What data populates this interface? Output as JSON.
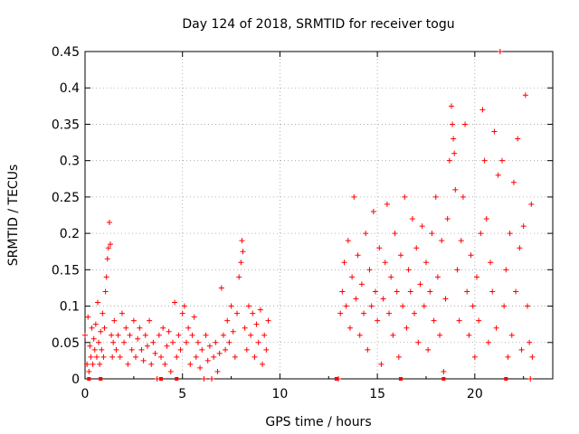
{
  "chart_data": {
    "type": "scatter",
    "title": "Day 124 of 2018, SRMTID for receiver togu",
    "xlabel": "GPS time / hours",
    "ylabel": "SRMTID / TECUs",
    "xlim": [
      0,
      24
    ],
    "ylim": [
      0,
      0.45
    ],
    "xticks": [
      0,
      5,
      10,
      15,
      20
    ],
    "yticks": [
      0,
      0.05,
      0.1,
      0.15,
      0.2,
      0.25,
      0.3,
      0.35,
      0.4,
      0.45
    ],
    "ytick_labels": [
      "0",
      "0.05",
      "0.1",
      "0.15",
      "0.2",
      "0.25",
      "0.3",
      "0.35",
      "0.4",
      "0.45"
    ],
    "grid": true,
    "marker": "+",
    "color": "#ff0000",
    "series": [
      {
        "name": "SRMTID",
        "points": [
          [
            0.0,
            0.06
          ],
          [
            0.1,
            0.02
          ],
          [
            0.15,
            0.085
          ],
          [
            0.2,
            0.01
          ],
          [
            0.25,
            0.045
          ],
          [
            0.3,
            0.03
          ],
          [
            0.35,
            0.07
          ],
          [
            0.4,
            0.02
          ],
          [
            0.45,
            0.055
          ],
          [
            0.5,
            0.04
          ],
          [
            0.55,
            0.075
          ],
          [
            0.6,
            0.03
          ],
          [
            0.65,
            0.105
          ],
          [
            0.7,
            0.05
          ],
          [
            0.75,
            0.02
          ],
          [
            0.8,
            0.065
          ],
          [
            0.85,
            0.04
          ],
          [
            0.9,
            0.09
          ],
          [
            0.95,
            0.03
          ],
          [
            1.0,
            0.07
          ],
          [
            1.05,
            0.12
          ],
          [
            1.1,
            0.14
          ],
          [
            1.15,
            0.165
          ],
          [
            1.2,
            0.18
          ],
          [
            1.25,
            0.215
          ],
          [
            1.3,
            0.185
          ],
          [
            1.35,
            0.06
          ],
          [
            1.4,
            0.03
          ],
          [
            1.45,
            0.05
          ],
          [
            1.5,
            0.08
          ],
          [
            1.6,
            0.04
          ],
          [
            1.7,
            0.06
          ],
          [
            1.8,
            0.03
          ],
          [
            1.9,
            0.09
          ],
          [
            2.0,
            0.05
          ],
          [
            2.1,
            0.07
          ],
          [
            2.2,
            0.02
          ],
          [
            2.3,
            0.06
          ],
          [
            2.4,
            0.04
          ],
          [
            2.5,
            0.08
          ],
          [
            2.6,
            0.03
          ],
          [
            2.7,
            0.055
          ],
          [
            2.8,
            0.07
          ],
          [
            2.9,
            0.04
          ],
          [
            3.0,
            0.025
          ],
          [
            3.1,
            0.06
          ],
          [
            3.2,
            0.045
          ],
          [
            3.3,
            0.08
          ],
          [
            3.4,
            0.02
          ],
          [
            3.5,
            0.05
          ],
          [
            3.6,
            0.035
          ],
          [
            3.7,
            0.0
          ],
          [
            3.8,
            0.06
          ],
          [
            3.9,
            0.03
          ],
          [
            4.0,
            0.07
          ],
          [
            4.1,
            0.02
          ],
          [
            4.2,
            0.045
          ],
          [
            4.3,
            0.065
          ],
          [
            4.4,
            0.01
          ],
          [
            4.5,
            0.05
          ],
          [
            4.6,
            0.105
          ],
          [
            4.7,
            0.03
          ],
          [
            4.8,
            0.06
          ],
          [
            4.9,
            0.04
          ],
          [
            5.0,
            0.09
          ],
          [
            5.1,
            0.1
          ],
          [
            5.2,
            0.05
          ],
          [
            5.3,
            0.07
          ],
          [
            5.4,
            0.02
          ],
          [
            5.5,
            0.06
          ],
          [
            5.6,
            0.085
          ],
          [
            5.7,
            0.03
          ],
          [
            5.8,
            0.05
          ],
          [
            5.9,
            0.015
          ],
          [
            6.0,
            0.04
          ],
          [
            6.1,
            0.0
          ],
          [
            6.2,
            0.06
          ],
          [
            6.3,
            0.025
          ],
          [
            6.4,
            0.045
          ],
          [
            6.5,
            0.0
          ],
          [
            6.6,
            0.03
          ],
          [
            6.7,
            0.05
          ],
          [
            6.8,
            0.01
          ],
          [
            6.9,
            0.035
          ],
          [
            7.0,
            0.125
          ],
          [
            7.1,
            0.06
          ],
          [
            7.2,
            0.04
          ],
          [
            7.3,
            0.08
          ],
          [
            7.4,
            0.05
          ],
          [
            7.5,
            0.1
          ],
          [
            7.6,
            0.065
          ],
          [
            7.7,
            0.03
          ],
          [
            7.8,
            0.09
          ],
          [
            7.9,
            0.14
          ],
          [
            8.0,
            0.16
          ],
          [
            8.05,
            0.19
          ],
          [
            8.1,
            0.175
          ],
          [
            8.2,
            0.07
          ],
          [
            8.3,
            0.04
          ],
          [
            8.4,
            0.1
          ],
          [
            8.5,
            0.06
          ],
          [
            8.6,
            0.09
          ],
          [
            8.7,
            0.03
          ],
          [
            8.8,
            0.075
          ],
          [
            8.9,
            0.05
          ],
          [
            9.0,
            0.095
          ],
          [
            9.1,
            0.02
          ],
          [
            9.2,
            0.06
          ],
          [
            9.3,
            0.04
          ],
          [
            9.4,
            0.08
          ],
          [
            13.0,
            0.0
          ],
          [
            13.1,
            0.09
          ],
          [
            13.2,
            0.12
          ],
          [
            13.3,
            0.16
          ],
          [
            13.4,
            0.1
          ],
          [
            13.5,
            0.19
          ],
          [
            13.6,
            0.07
          ],
          [
            13.7,
            0.14
          ],
          [
            13.8,
            0.25
          ],
          [
            13.9,
            0.11
          ],
          [
            14.0,
            0.17
          ],
          [
            14.1,
            0.06
          ],
          [
            14.2,
            0.13
          ],
          [
            14.3,
            0.09
          ],
          [
            14.4,
            0.2
          ],
          [
            14.5,
            0.04
          ],
          [
            14.6,
            0.15
          ],
          [
            14.7,
            0.1
          ],
          [
            14.8,
            0.23
          ],
          [
            14.9,
            0.12
          ],
          [
            15.0,
            0.08
          ],
          [
            15.1,
            0.18
          ],
          [
            15.2,
            0.02
          ],
          [
            15.3,
            0.11
          ],
          [
            15.4,
            0.16
          ],
          [
            15.5,
            0.24
          ],
          [
            15.6,
            0.09
          ],
          [
            15.7,
            0.14
          ],
          [
            15.8,
            0.06
          ],
          [
            15.9,
            0.2
          ],
          [
            16.0,
            0.12
          ],
          [
            16.1,
            0.03
          ],
          [
            16.2,
            0.17
          ],
          [
            16.3,
            0.1
          ],
          [
            16.4,
            0.25
          ],
          [
            16.5,
            0.07
          ],
          [
            16.6,
            0.15
          ],
          [
            16.7,
            0.12
          ],
          [
            16.8,
            0.22
          ],
          [
            16.9,
            0.09
          ],
          [
            17.0,
            0.18
          ],
          [
            17.1,
            0.05
          ],
          [
            17.2,
            0.13
          ],
          [
            17.3,
            0.21
          ],
          [
            17.4,
            0.1
          ],
          [
            17.5,
            0.16
          ],
          [
            17.6,
            0.04
          ],
          [
            17.7,
            0.12
          ],
          [
            17.8,
            0.2
          ],
          [
            17.9,
            0.08
          ],
          [
            18.0,
            0.25
          ],
          [
            18.1,
            0.14
          ],
          [
            18.2,
            0.06
          ],
          [
            18.3,
            0.19
          ],
          [
            18.4,
            0.01
          ],
          [
            18.5,
            0.11
          ],
          [
            18.6,
            0.22
          ],
          [
            18.7,
            0.3
          ],
          [
            18.8,
            0.375
          ],
          [
            18.85,
            0.35
          ],
          [
            18.9,
            0.33
          ],
          [
            18.95,
            0.31
          ],
          [
            19.0,
            0.26
          ],
          [
            19.1,
            0.15
          ],
          [
            19.2,
            0.08
          ],
          [
            19.3,
            0.19
          ],
          [
            19.4,
            0.25
          ],
          [
            19.5,
            0.35
          ],
          [
            19.6,
            0.12
          ],
          [
            19.7,
            0.06
          ],
          [
            19.8,
            0.17
          ],
          [
            19.9,
            0.1
          ],
          [
            20.0,
            0.03
          ],
          [
            20.1,
            0.14
          ],
          [
            20.2,
            0.08
          ],
          [
            20.3,
            0.2
          ],
          [
            20.4,
            0.37
          ],
          [
            20.5,
            0.3
          ],
          [
            20.6,
            0.22
          ],
          [
            20.7,
            0.05
          ],
          [
            20.8,
            0.16
          ],
          [
            20.9,
            0.12
          ],
          [
            21.0,
            0.34
          ],
          [
            21.1,
            0.07
          ],
          [
            21.2,
            0.28
          ],
          [
            21.3,
            0.45
          ],
          [
            21.4,
            0.3
          ],
          [
            21.5,
            0.1
          ],
          [
            21.6,
            0.15
          ],
          [
            21.7,
            0.03
          ],
          [
            21.8,
            0.2
          ],
          [
            21.9,
            0.06
          ],
          [
            22.0,
            0.27
          ],
          [
            22.1,
            0.12
          ],
          [
            22.2,
            0.33
          ],
          [
            22.3,
            0.18
          ],
          [
            22.4,
            0.04
          ],
          [
            22.5,
            0.21
          ],
          [
            22.6,
            0.39
          ],
          [
            22.7,
            0.1
          ],
          [
            22.8,
            0.05
          ],
          [
            22.85,
            0.0
          ],
          [
            22.9,
            0.24
          ],
          [
            22.95,
            0.03
          ]
        ]
      }
    ],
    "markers_on_axis": [
      [
        0.2,
        0.0
      ],
      [
        0.8,
        0.0
      ],
      [
        3.9,
        0.0
      ],
      [
        4.7,
        0.0
      ],
      [
        12.9,
        0.0
      ],
      [
        16.2,
        0.0
      ],
      [
        18.4,
        0.0
      ],
      [
        21.6,
        0.0
      ]
    ]
  }
}
